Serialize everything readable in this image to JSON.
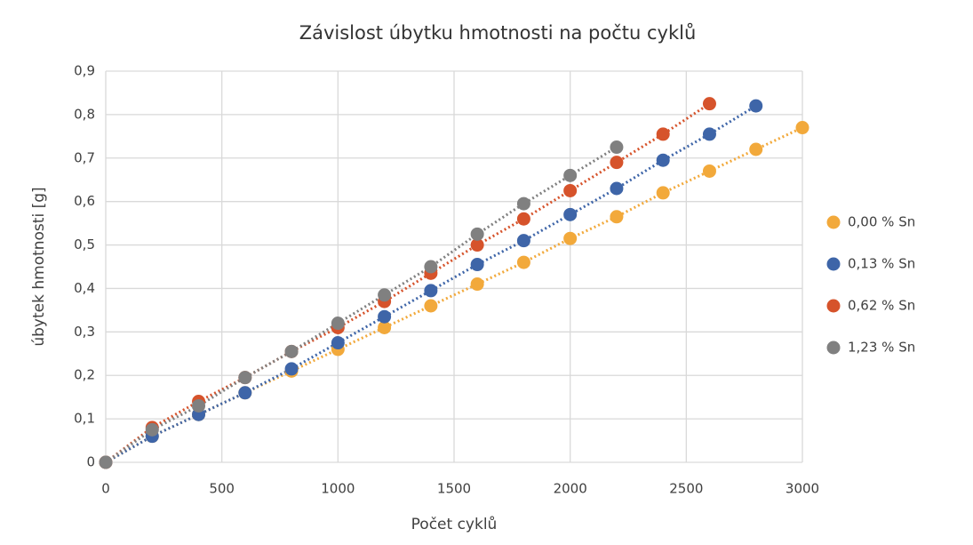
{
  "chart_data": {
    "type": "scatter",
    "title": "Závislost úbytku hmotnosti na počtu cyklů",
    "x_label": "Počet cyklů",
    "y_label": "úbytek hmotnosti [g]",
    "xlim": [
      0,
      3000
    ],
    "xticks": [
      0,
      500,
      1000,
      1500,
      2000,
      2500,
      3000
    ],
    "ylim": [
      0,
      0.9
    ],
    "yticks": [
      0,
      {
        "value": 0.1,
        "label": "0,1"
      },
      {
        "value": 0.2,
        "label": "0,2"
      },
      {
        "value": 0.3,
        "label": "0,3"
      },
      {
        "value": 0.4,
        "label": "0,4"
      },
      {
        "value": 0.5,
        "label": "0,5"
      },
      {
        "value": 0.6,
        "label": "0,6"
      },
      {
        "value": 0.7,
        "label": "0,7"
      },
      {
        "value": 0.8,
        "label": "0,8"
      },
      {
        "value": 0.9,
        "label": "0,9"
      }
    ],
    "grid": true,
    "legend": "right",
    "trendline": "dotted",
    "series": [
      {
        "name": "0,00 % Sn",
        "color": "#f2a93b",
        "x": [
          0,
          200,
          400,
          600,
          800,
          1000,
          1200,
          1400,
          1600,
          1800,
          2000,
          2200,
          2400,
          2600,
          2800,
          3000
        ],
        "values": [
          0,
          0.06,
          0.11,
          0.16,
          0.21,
          0.26,
          0.31,
          0.36,
          0.41,
          0.46,
          0.515,
          0.565,
          0.62,
          0.67,
          0.72,
          0.77
        ]
      },
      {
        "name": "0,13 % Sn",
        "color": "#3e65a8",
        "x": [
          0,
          200,
          400,
          600,
          800,
          1000,
          1200,
          1400,
          1600,
          1800,
          2000,
          2200,
          2400,
          2600,
          2800
        ],
        "values": [
          0,
          0.06,
          0.11,
          0.16,
          0.215,
          0.275,
          0.335,
          0.395,
          0.455,
          0.51,
          0.57,
          0.63,
          0.695,
          0.755,
          0.82
        ]
      },
      {
        "name": "0,62 % Sn",
        "color": "#d6532b",
        "x": [
          0,
          200,
          400,
          600,
          800,
          1000,
          1200,
          1400,
          1600,
          1800,
          2000,
          2200,
          2400,
          2600
        ],
        "values": [
          0,
          0.08,
          0.14,
          0.195,
          0.255,
          0.31,
          0.37,
          0.435,
          0.5,
          0.56,
          0.625,
          0.69,
          0.755,
          0.825
        ]
      },
      {
        "name": "1,23 % Sn",
        "color": "#808080",
        "x": [
          0,
          200,
          400,
          600,
          800,
          1000,
          1200,
          1400,
          1600,
          1800,
          2000,
          2200
        ],
        "values": [
          0,
          0.075,
          0.13,
          0.195,
          0.255,
          0.32,
          0.385,
          0.45,
          0.525,
          0.595,
          0.66,
          0.725
        ]
      }
    ]
  }
}
